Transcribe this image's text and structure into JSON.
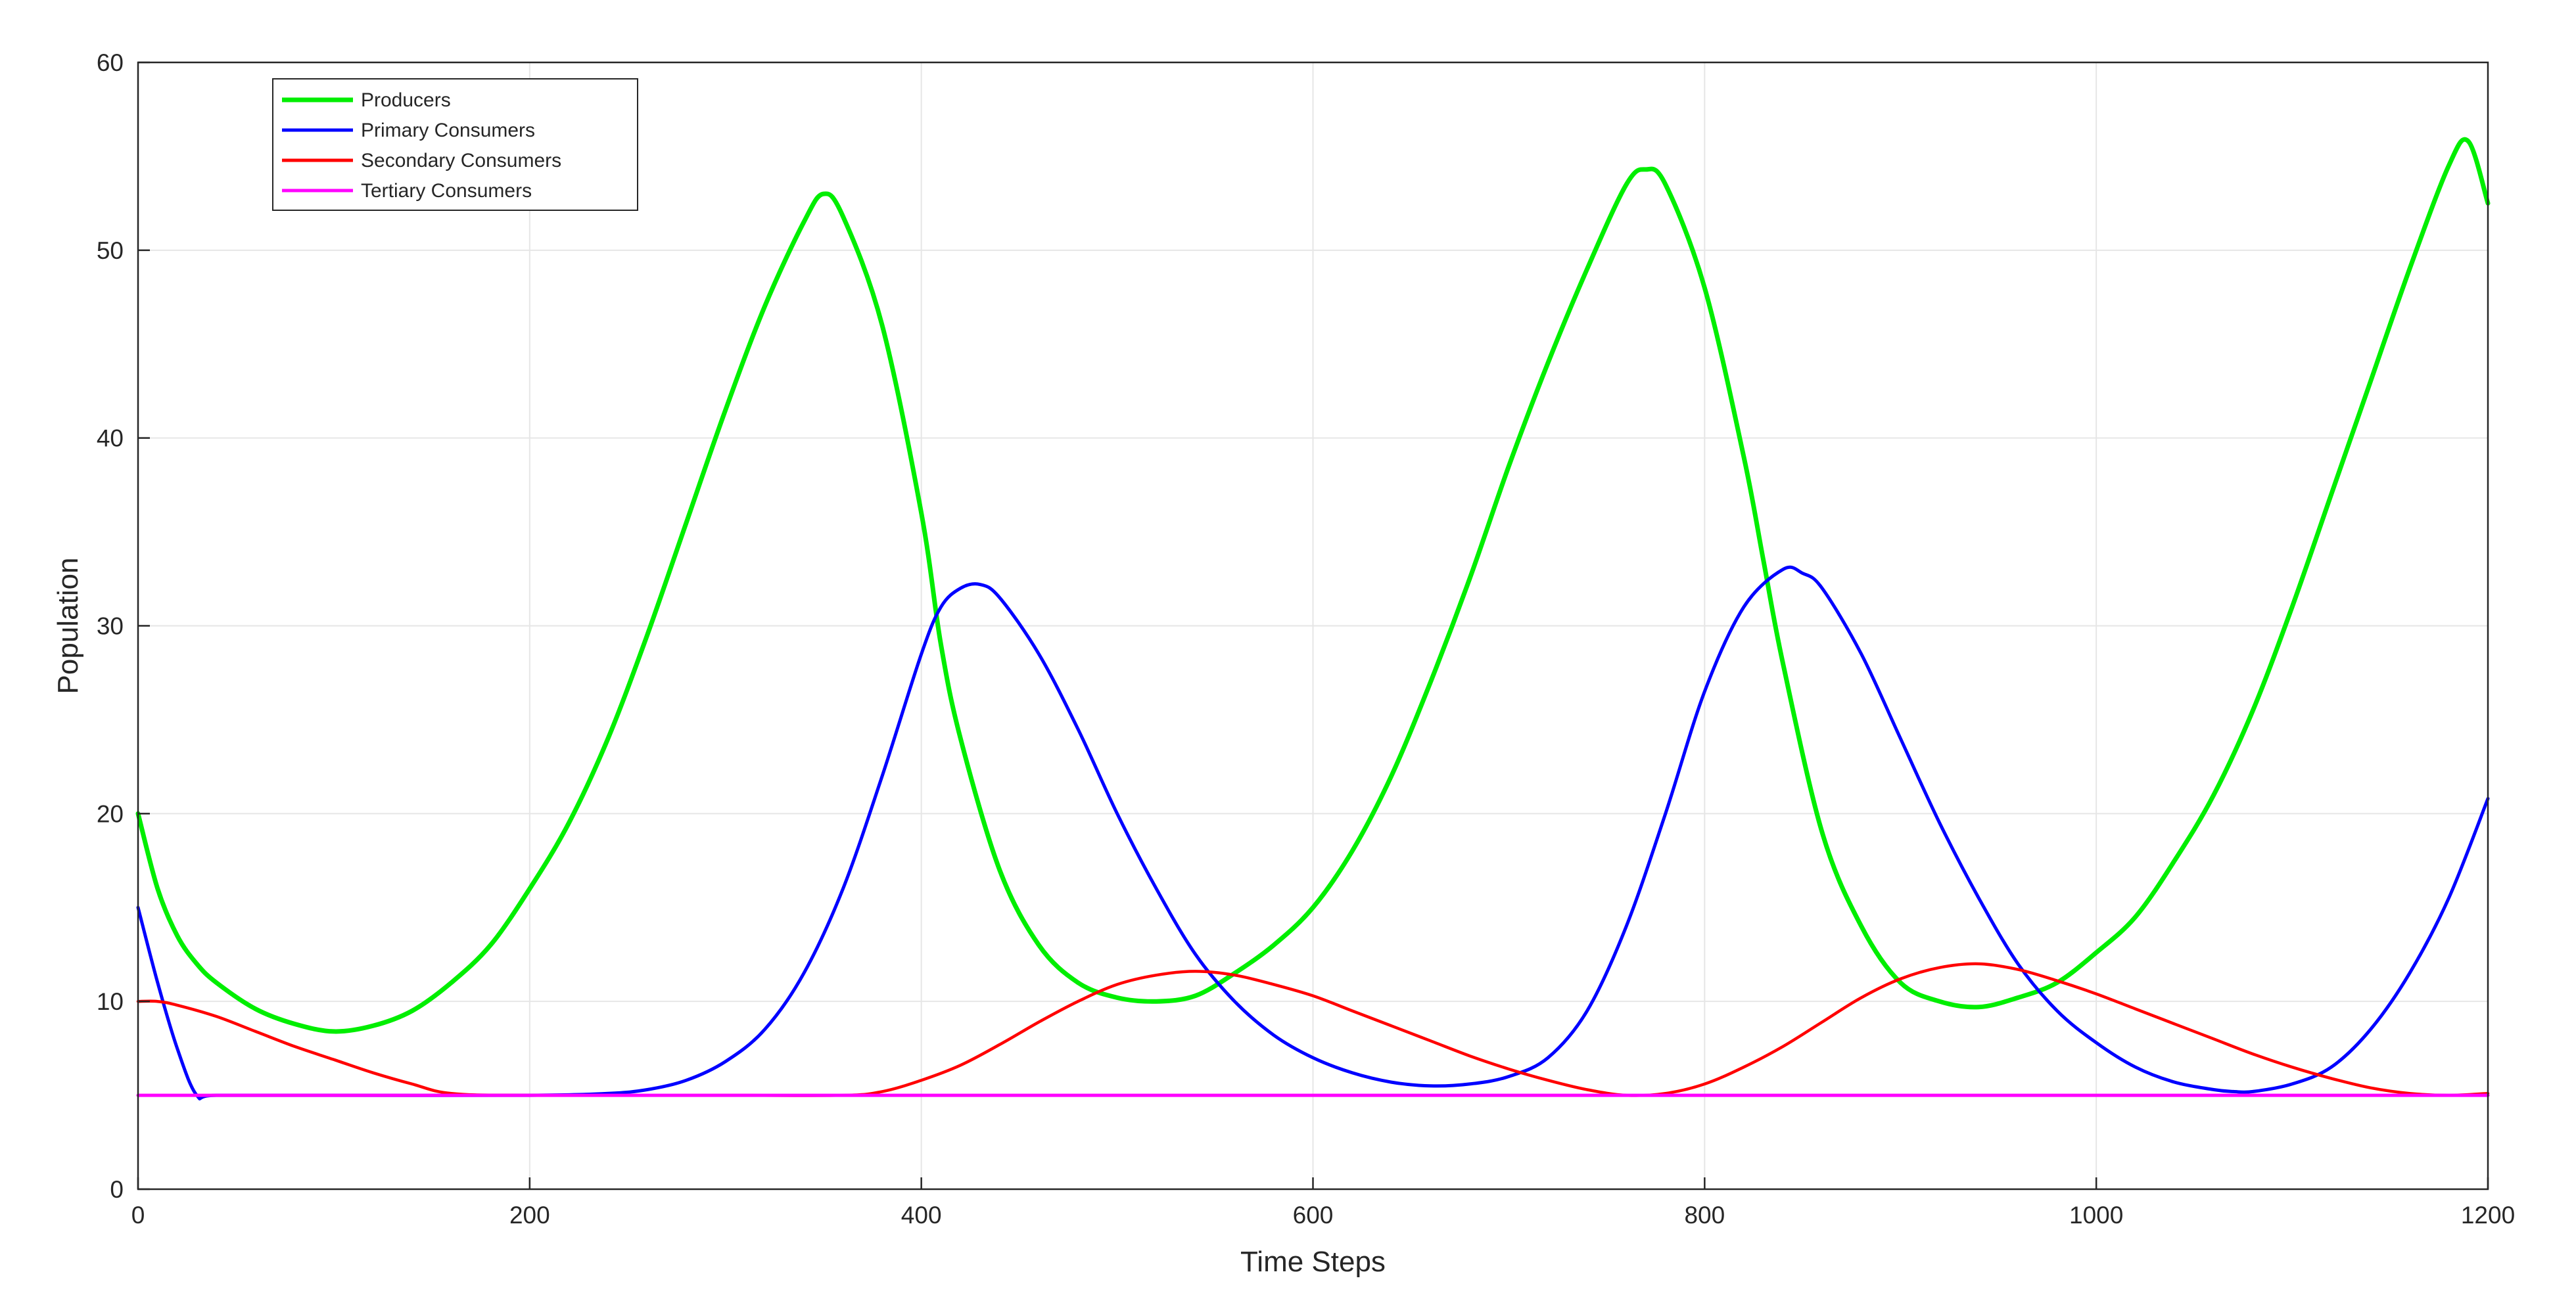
{
  "chart_data": {
    "type": "line",
    "title": "",
    "xlabel": "Time Steps",
    "ylabel": "Population",
    "xlim": [
      0,
      1200
    ],
    "ylim": [
      0,
      60
    ],
    "xticks": [
      "0",
      "200",
      "400",
      "600",
      "800",
      "1000",
      "1200"
    ],
    "yticks": [
      "0",
      "10",
      "20",
      "30",
      "40",
      "50",
      "60"
    ],
    "grid": true,
    "legend_position": "top-left",
    "series": [
      {
        "name": "Producers",
        "color": "#00ee00",
        "x": [
          0,
          10,
          20,
          30,
          40,
          60,
          80,
          100,
          120,
          140,
          160,
          180,
          200,
          220,
          240,
          260,
          280,
          300,
          320,
          340,
          350,
          360,
          380,
          400,
          410,
          420,
          440,
          460,
          480,
          500,
          520,
          540,
          560,
          580,
          600,
          620,
          640,
          660,
          680,
          700,
          720,
          740,
          760,
          770,
          780,
          800,
          820,
          830,
          840,
          860,
          880,
          900,
          920,
          940,
          960,
          980,
          1000,
          1020,
          1040,
          1060,
          1080,
          1100,
          1120,
          1140,
          1160,
          1180,
          1190,
          1200
        ],
        "y": [
          20,
          16,
          13.5,
          12,
          11,
          9.6,
          8.8,
          8.4,
          8.7,
          9.5,
          11,
          13,
          16,
          19.5,
          24,
          29.5,
          35.5,
          41.5,
          47,
          51.5,
          53,
          51.8,
          46,
          36,
          29,
          24,
          17,
          13,
          11,
          10.2,
          10,
          10.3,
          11.5,
          13,
          15,
          18,
          22,
          27,
          32.5,
          38.5,
          44,
          49,
          53.5,
          54.3,
          53.5,
          48,
          39,
          33.5,
          28,
          19,
          14,
          11,
          10,
          9.7,
          10.2,
          11,
          12.6,
          14.5,
          17.5,
          21,
          25.5,
          31,
          37,
          43,
          49,
          54.5,
          55.8,
          52.5
        ]
      },
      {
        "name": "Primary Consumers",
        "color": "#0000ff",
        "x": [
          0,
          10,
          20,
          30,
          40,
          100,
          200,
          240,
          260,
          280,
          300,
          320,
          340,
          360,
          380,
          400,
          410,
          420,
          430,
          440,
          460,
          480,
          500,
          520,
          540,
          560,
          580,
          600,
          620,
          640,
          660,
          680,
          700,
          720,
          740,
          760,
          780,
          800,
          820,
          840,
          850,
          860,
          880,
          900,
          920,
          940,
          960,
          980,
          1000,
          1020,
          1040,
          1060,
          1070,
          1080,
          1100,
          1120,
          1140,
          1160,
          1180,
          1200
        ],
        "y": [
          15,
          11,
          7.5,
          5,
          5,
          5,
          5,
          5.1,
          5.3,
          5.8,
          6.8,
          8.5,
          11.5,
          16,
          22,
          28.5,
          31,
          32,
          32.2,
          31.5,
          28.5,
          24.5,
          20,
          16,
          12.5,
          10,
          8.2,
          7,
          6.2,
          5.7,
          5.5,
          5.6,
          6,
          7,
          9.5,
          14,
          20,
          26.5,
          31,
          33,
          32.8,
          32,
          28.5,
          24,
          19.5,
          15.5,
          12,
          9.5,
          7.8,
          6.5,
          5.7,
          5.3,
          5.2,
          5.2,
          5.6,
          6.5,
          8.5,
          11.5,
          15.5,
          20.8
        ]
      },
      {
        "name": "Secondary Consumers",
        "color": "#ff0000",
        "x": [
          0,
          10,
          20,
          40,
          60,
          80,
          100,
          120,
          140,
          160,
          200,
          300,
          360,
          380,
          400,
          420,
          440,
          460,
          480,
          500,
          520,
          540,
          560,
          580,
          600,
          620,
          640,
          660,
          680,
          700,
          720,
          740,
          760,
          780,
          800,
          820,
          840,
          860,
          880,
          900,
          920,
          940,
          960,
          980,
          1000,
          1020,
          1040,
          1060,
          1080,
          1100,
          1120,
          1140,
          1160,
          1180,
          1200
        ],
        "y": [
          10,
          10,
          9.8,
          9.2,
          8.4,
          7.6,
          6.9,
          6.2,
          5.6,
          5.1,
          5,
          5,
          5,
          5.2,
          5.8,
          6.6,
          7.7,
          8.9,
          10,
          10.9,
          11.4,
          11.6,
          11.4,
          10.9,
          10.3,
          9.5,
          8.7,
          7.9,
          7.1,
          6.4,
          5.8,
          5.3,
          5,
          5.1,
          5.6,
          6.5,
          7.6,
          8.9,
          10.2,
          11.2,
          11.8,
          12,
          11.7,
          11.1,
          10.4,
          9.6,
          8.8,
          8,
          7.2,
          6.5,
          5.9,
          5.4,
          5.1,
          5,
          5.1
        ]
      },
      {
        "name": "Tertiary Consumers",
        "color": "#ff00ff",
        "x": [
          0,
          1200
        ],
        "y": [
          5,
          5
        ]
      }
    ]
  }
}
